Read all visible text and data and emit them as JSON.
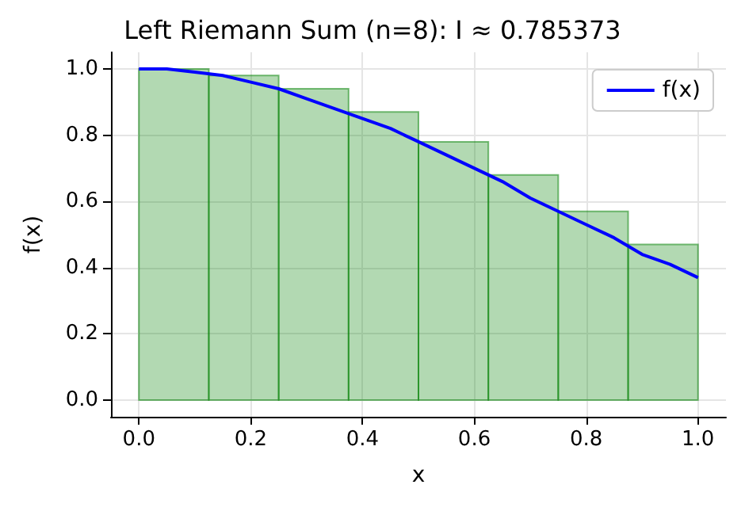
{
  "chart_data": {
    "type": "histogram",
    "title": "Left Riemann Sum (n=8): I ≈ 0.785373",
    "xlabel": "x",
    "ylabel": "f(x)",
    "bins": [
      0,
      0.125,
      0.25,
      0.375,
      0.5,
      0.625,
      0.75,
      0.875,
      1
    ],
    "values": [
      1,
      0.98,
      0.94,
      0.87,
      0.78,
      0.68,
      0.57,
      0.47
    ],
    "color": "#008000",
    "series": [
      {
        "type": "line",
        "name": "f(x)",
        "color": "#0000ff",
        "x": [
          0,
          0.05,
          0.1,
          0.15,
          0.2,
          0.25,
          0.3,
          0.35,
          0.4,
          0.45,
          0.5,
          0.55,
          0.6,
          0.65,
          0.7,
          0.75,
          0.8,
          0.85,
          0.9,
          0.95,
          1
        ],
        "values": [
          1,
          1,
          0.99,
          0.98,
          0.96,
          0.94,
          0.91,
          0.88,
          0.85,
          0.82,
          0.78,
          0.74,
          0.7,
          0.66,
          0.61,
          0.57,
          0.53,
          0.49,
          0.44,
          0.41,
          0.37
        ]
      }
    ],
    "xlim": [
      -0.05,
      1.05
    ],
    "ylim": [
      -0.05,
      1.05
    ],
    "xticks": [
      {
        "value": 0,
        "label": "0.0"
      },
      {
        "value": 0.2,
        "label": "0.2"
      },
      {
        "value": 0.4,
        "label": "0.4"
      },
      {
        "value": 0.6,
        "label": "0.6"
      },
      {
        "value": 0.8,
        "label": "0.8"
      },
      {
        "value": 1,
        "label": "1.0"
      }
    ],
    "yticks": [
      {
        "value": 0,
        "label": "0.0"
      },
      {
        "value": 0.2,
        "label": "0.2"
      },
      {
        "value": 0.4,
        "label": "0.4"
      },
      {
        "value": 0.6,
        "label": "0.6"
      },
      {
        "value": 0.8,
        "label": "0.8"
      },
      {
        "value": 1,
        "label": "1.0"
      }
    ],
    "grid": true,
    "legend": "top right",
    "marker": "none",
    "line_style": "solid"
  }
}
